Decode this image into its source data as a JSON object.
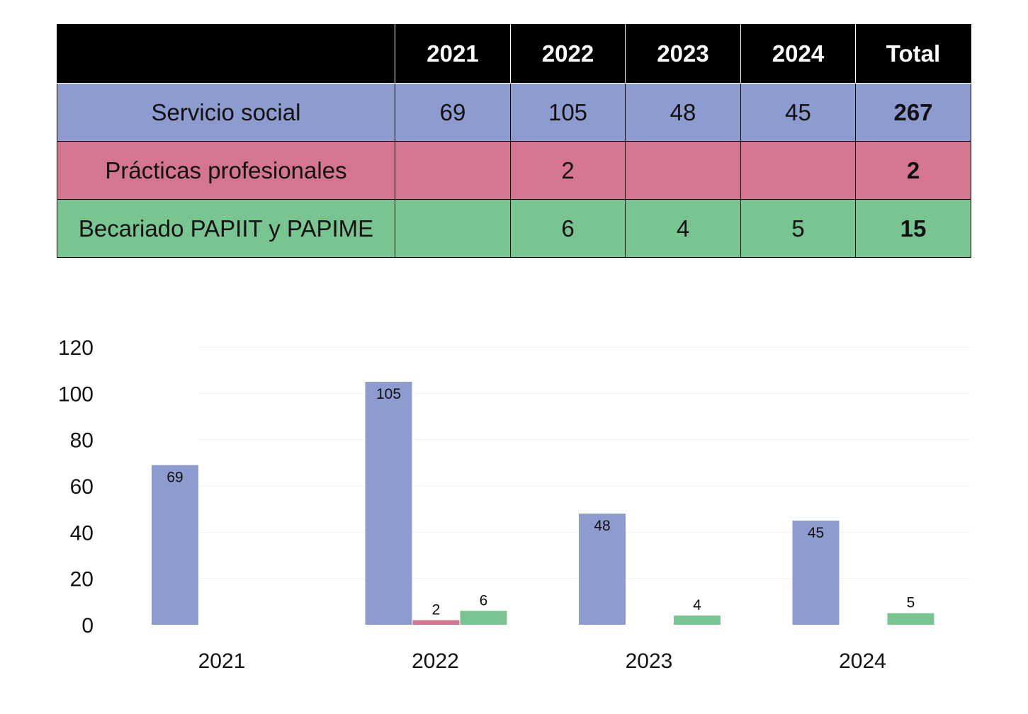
{
  "table": {
    "headers": [
      "",
      "2021",
      "2022",
      "2023",
      "2024",
      "Total"
    ],
    "rows": [
      {
        "label": "Servicio social",
        "cells": [
          "69",
          "105",
          "48",
          "45",
          "267"
        ],
        "color": "#8e9bcf"
      },
      {
        "label": "Prácticas profesionales",
        "cells": [
          "",
          "2",
          "",
          "",
          "2"
        ],
        "color": "#d57690"
      },
      {
        "label": "Becariado PAPIIT y PAPIME",
        "cells": [
          "",
          "6",
          "4",
          "5",
          "15"
        ],
        "color": "#79c591"
      }
    ]
  },
  "chart_data": {
    "type": "bar",
    "categories": [
      "2021",
      "2022",
      "2023",
      "2024"
    ],
    "series": [
      {
        "name": "Servicio social",
        "values": [
          69,
          105,
          48,
          45
        ],
        "color": "#8e9bcf"
      },
      {
        "name": "Prácticas profesionales",
        "values": [
          null,
          2,
          null,
          null
        ],
        "color": "#d57690"
      },
      {
        "name": "Becariado PAPIIT y PAPIME",
        "values": [
          null,
          6,
          4,
          5
        ],
        "color": "#79c591"
      }
    ],
    "yticks": [
      "0",
      "20",
      "40",
      "60",
      "80",
      "100",
      "120"
    ],
    "ylim": [
      0,
      120
    ],
    "grid": true,
    "legend": "none",
    "title": "",
    "xlabel": "",
    "ylabel": ""
  }
}
